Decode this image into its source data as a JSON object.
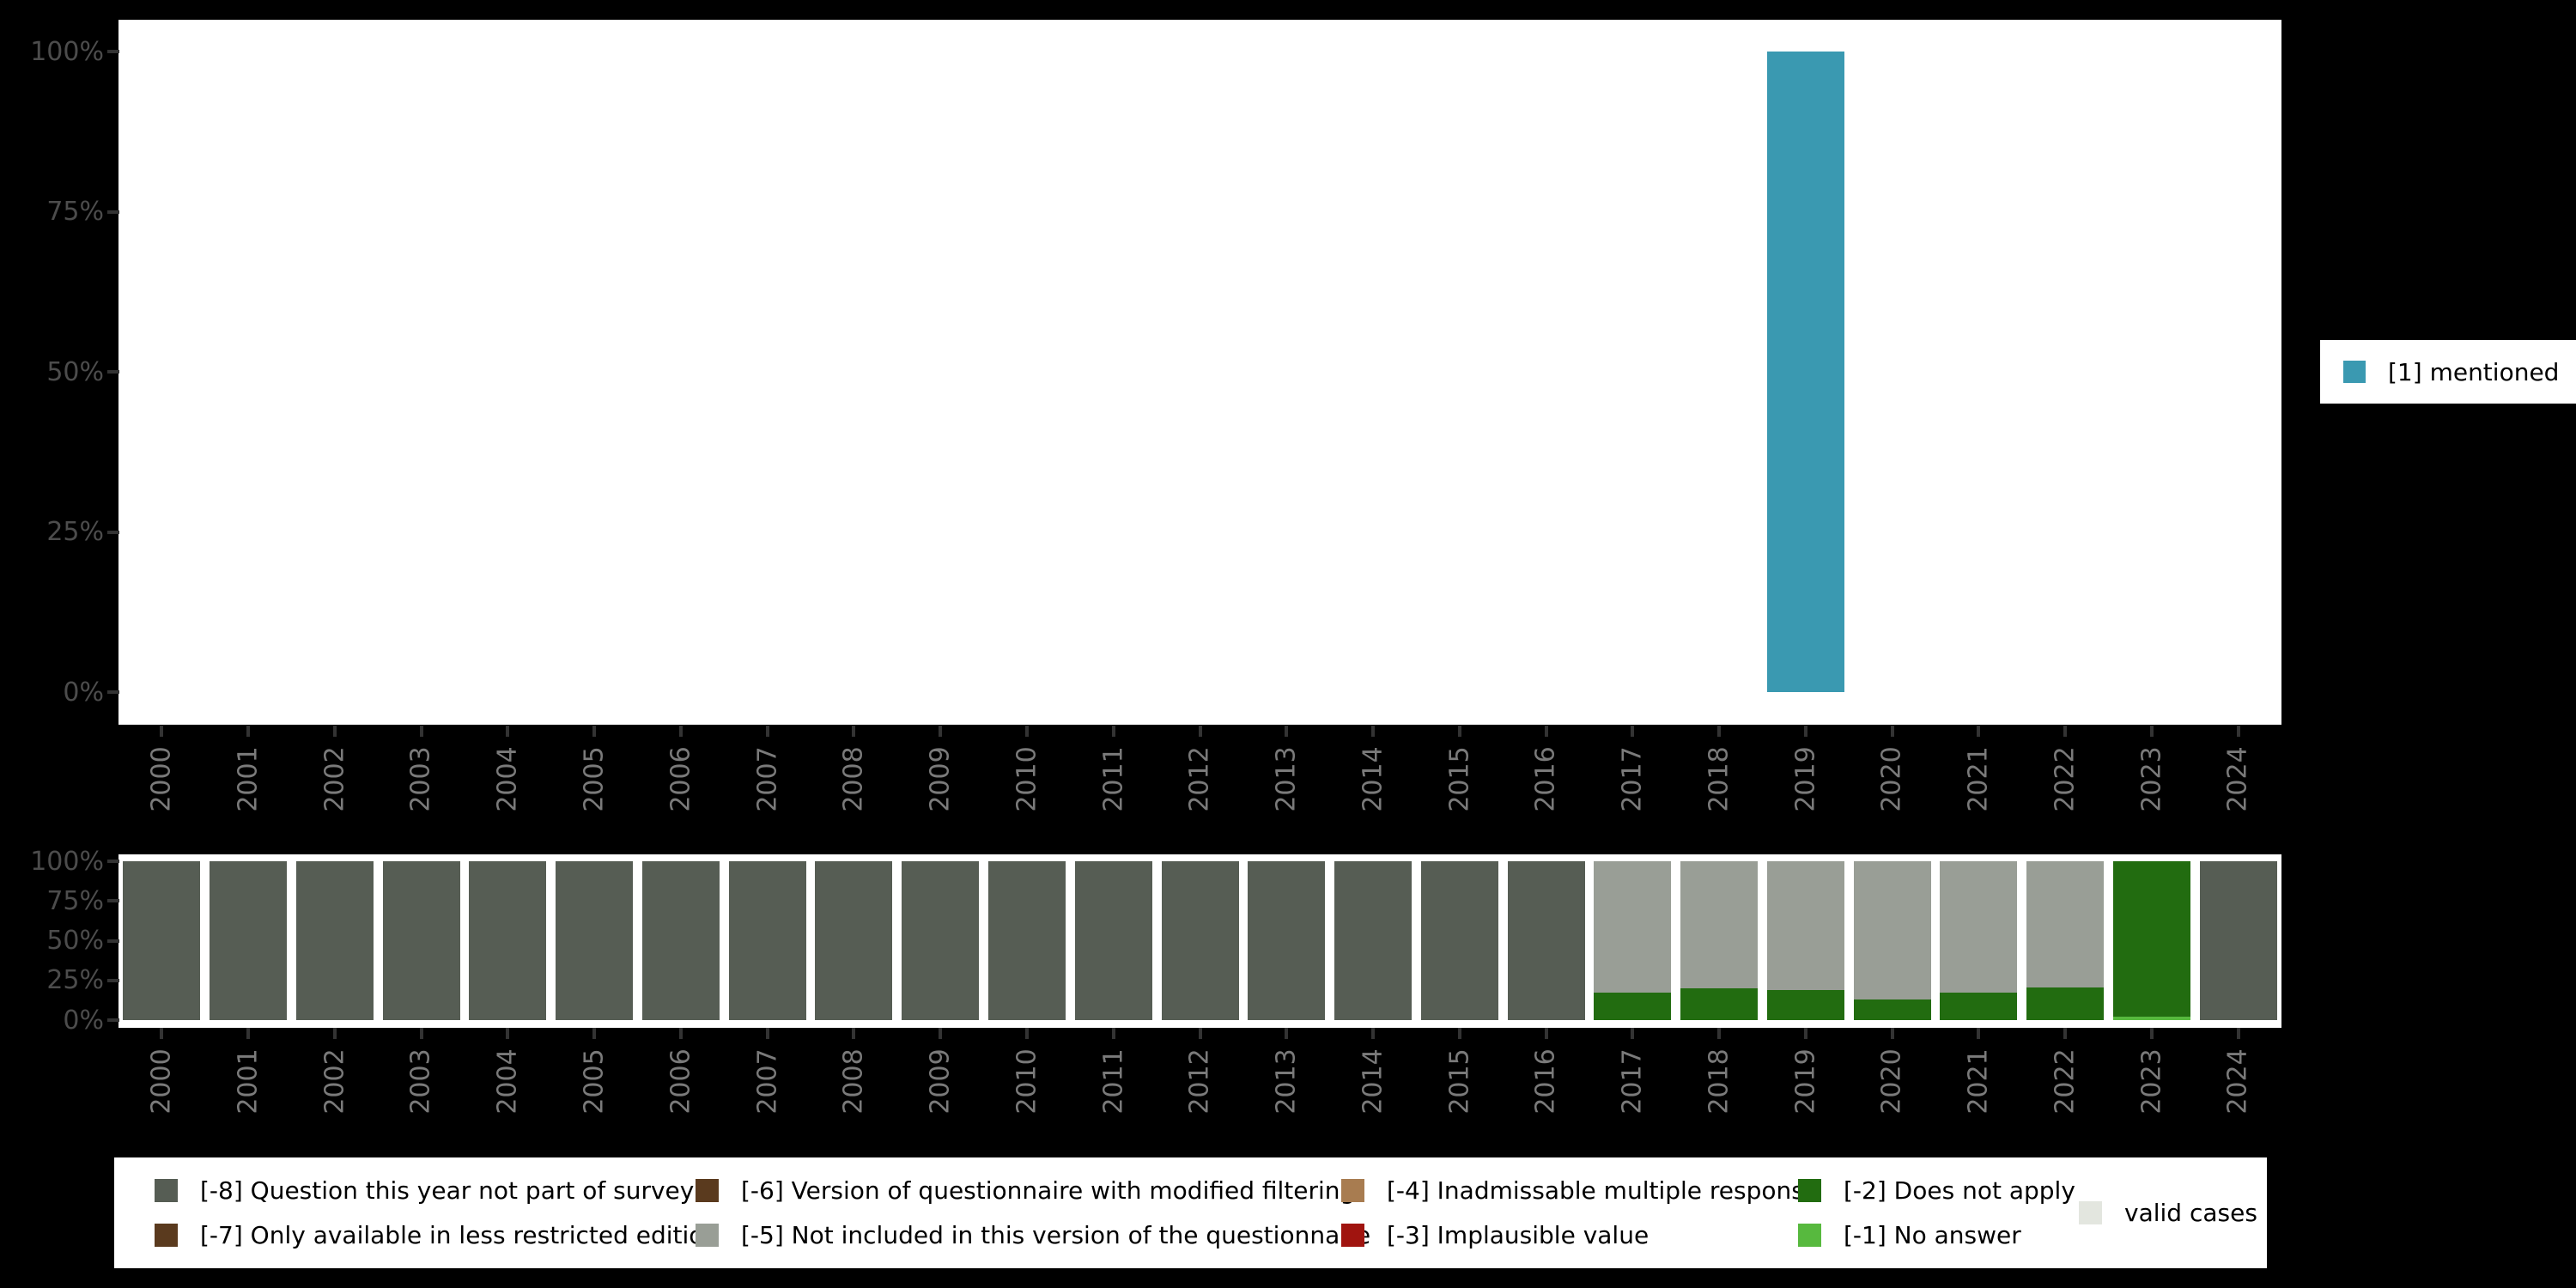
{
  "colors": {
    "mentioned": "#3a99b1",
    "-8": "#565d54",
    "-7": "#5a3a1e",
    "-6": "#5a3a1e",
    "-5": "#999e96",
    "-4": "#a87c50",
    "-3": "#a0140f",
    "-2": "#226c10",
    "-1": "#57b93e",
    "valid": "#e3e6df",
    "panel_bg": "#ffffff",
    "page_bg": "#000000",
    "axis_label": "#4c4c4c",
    "year_label": "#7a7a7a",
    "tick": "#333333"
  },
  "years": [
    "2000",
    "2001",
    "2002",
    "2003",
    "2004",
    "2005",
    "2006",
    "2007",
    "2008",
    "2009",
    "2010",
    "2011",
    "2012",
    "2013",
    "2014",
    "2015",
    "2016",
    "2017",
    "2018",
    "2019",
    "2020",
    "2021",
    "2022",
    "2023",
    "2024"
  ],
  "chart_data": [
    {
      "id": "values-by-year",
      "type": "bar",
      "title": "",
      "xlabel": "",
      "ylabel": "",
      "ylim": [
        0,
        100
      ],
      "yticks": [
        "0%",
        "25%",
        "50%",
        "75%",
        "100%"
      ],
      "ytick_values": [
        0,
        25,
        50,
        75,
        100
      ],
      "grid": false,
      "series": [
        {
          "name": "[1] mentioned",
          "color_key": "mentioned",
          "values_pct_by_year": {
            "2019": 100
          }
        }
      ],
      "legend": {
        "position": "right",
        "entries": [
          {
            "label": "[1] mentioned",
            "color_key": "mentioned"
          }
        ]
      }
    },
    {
      "id": "missing-values-by-year",
      "type": "stacked-bar",
      "title": "",
      "xlabel": "",
      "ylabel": "",
      "ylim": [
        0,
        100
      ],
      "yticks": [
        "0%",
        "25%",
        "50%",
        "75%",
        "100%"
      ],
      "ytick_values": [
        0,
        25,
        50,
        75,
        100
      ],
      "grid": false,
      "segments_bottom_to_top_by_year": {
        "2000": [
          [
            "-8",
            100
          ]
        ],
        "2001": [
          [
            "-8",
            100
          ]
        ],
        "2002": [
          [
            "-8",
            100
          ]
        ],
        "2003": [
          [
            "-8",
            100
          ]
        ],
        "2004": [
          [
            "-8",
            100
          ]
        ],
        "2005": [
          [
            "-8",
            100
          ]
        ],
        "2006": [
          [
            "-8",
            100
          ]
        ],
        "2007": [
          [
            "-8",
            100
          ]
        ],
        "2008": [
          [
            "-8",
            100
          ]
        ],
        "2009": [
          [
            "-8",
            100
          ]
        ],
        "2010": [
          [
            "-8",
            100
          ]
        ],
        "2011": [
          [
            "-8",
            100
          ]
        ],
        "2012": [
          [
            "-8",
            100
          ]
        ],
        "2013": [
          [
            "-8",
            100
          ]
        ],
        "2014": [
          [
            "-8",
            100
          ]
        ],
        "2015": [
          [
            "-8",
            100
          ]
        ],
        "2016": [
          [
            "-8",
            100
          ]
        ],
        "2017": [
          [
            "-2",
            17.5
          ],
          [
            "-5",
            82.5
          ]
        ],
        "2018": [
          [
            "-2",
            20
          ],
          [
            "-5",
            80
          ]
        ],
        "2019": [
          [
            "-2",
            19
          ],
          [
            "-5",
            81
          ]
        ],
        "2020": [
          [
            "-2",
            13
          ],
          [
            "-5",
            87
          ]
        ],
        "2021": [
          [
            "-2",
            17.5
          ],
          [
            "-5",
            82.5
          ]
        ],
        "2022": [
          [
            "-2",
            20.5
          ],
          [
            "-5",
            79.5
          ]
        ],
        "2023": [
          [
            "-1",
            2
          ],
          [
            "-2",
            98
          ]
        ],
        "2024": [
          [
            "-8",
            100
          ]
        ]
      }
    }
  ],
  "legend_bottom": {
    "columns": [
      {
        "rows": [
          {
            "label": "[-8] Question this year not part of survey",
            "color_key": "-8"
          },
          {
            "label": "[-7] Only available in less restricted edition",
            "color_key": "-7"
          }
        ]
      },
      {
        "rows": [
          {
            "label": "[-6] Version of questionnaire with modified filtering",
            "color_key": "-6"
          },
          {
            "label": "[-5] Not included in this version of the questionnaire",
            "color_key": "-5"
          }
        ]
      },
      {
        "rows": [
          {
            "label": "[-4] Inadmissable multiple response",
            "color_key": "-4"
          },
          {
            "label": "[-3] Implausible value",
            "color_key": "-3"
          }
        ]
      },
      {
        "rows": [
          {
            "label": "[-2] Does not apply",
            "color_key": "-2"
          },
          {
            "label": "[-1] No answer",
            "color_key": "-1"
          }
        ]
      },
      {
        "rows": [
          {
            "label": "valid cases",
            "color_key": "valid"
          }
        ]
      }
    ]
  }
}
